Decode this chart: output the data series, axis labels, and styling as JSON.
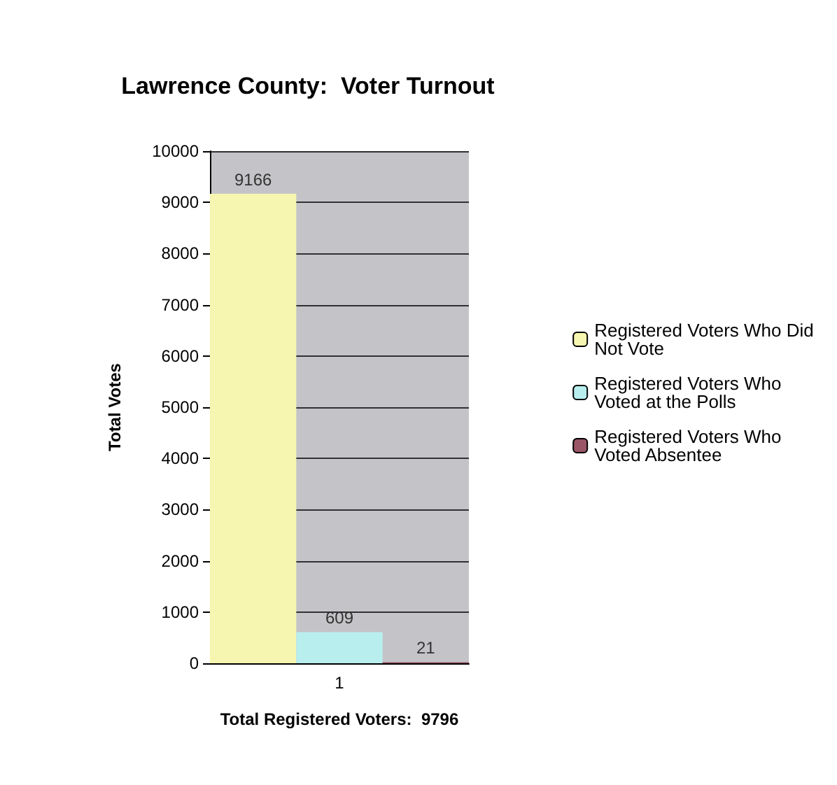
{
  "chart_data": {
    "type": "bar",
    "title": "Lawrence County:  Voter Turnout",
    "xlabel": "Total Registered Voters:  9796",
    "ylabel": "Total Votes",
    "categories": [
      null,
      "1",
      null
    ],
    "series": [
      {
        "name": "Registered Voters Who Did Not Vote",
        "color": "#f6f6b0",
        "values": [
          9166,
          null,
          null
        ]
      },
      {
        "name": "Registered Voters Who Voted at the Polls",
        "color": "#b8eeee",
        "values": [
          null,
          609,
          null
        ]
      },
      {
        "name": "Registered Voters Who Voted Absentee",
        "color": "#9a5566",
        "values": [
          null,
          null,
          21
        ]
      }
    ],
    "ylim": [
      0,
      10000
    ],
    "yticks": [
      0,
      1000,
      2000,
      3000,
      4000,
      5000,
      6000,
      7000,
      8000,
      9000,
      10000
    ],
    "grid": "y",
    "legend": "right",
    "data_labels": true
  }
}
